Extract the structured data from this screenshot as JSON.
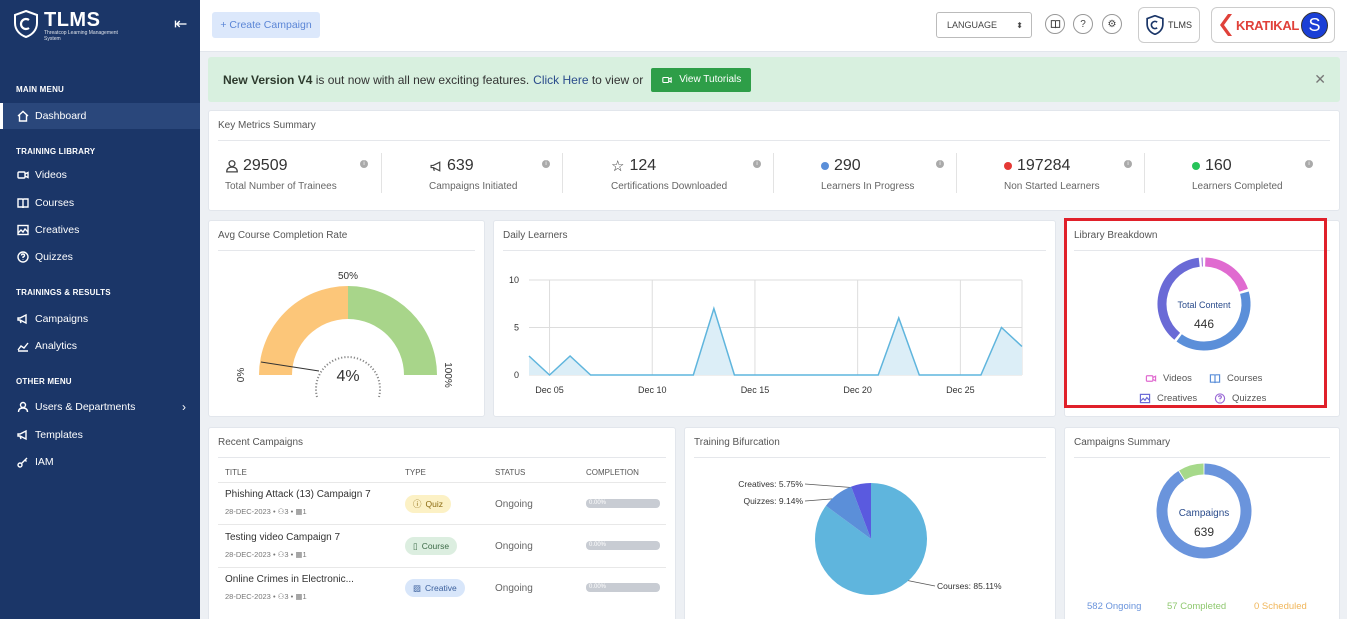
{
  "app": {
    "name": "TLMS",
    "tagline": "Threatcop Learning Management System"
  },
  "sidebar": {
    "sections": [
      "MAIN MENU",
      "TRAINING LIBRARY",
      "TRAININGS & RESULTS",
      "OTHER MENU"
    ],
    "items": [
      {
        "label": "Dashboard",
        "icon": "home-icon",
        "active": true
      },
      {
        "label": "Videos",
        "icon": "video-icon"
      },
      {
        "label": "Courses",
        "icon": "book-icon"
      },
      {
        "label": "Creatives",
        "icon": "image-icon"
      },
      {
        "label": "Quizzes",
        "icon": "question-icon"
      },
      {
        "label": "Campaigns",
        "icon": "megaphone-icon"
      },
      {
        "label": "Analytics",
        "icon": "analytics-icon"
      },
      {
        "label": "Users & Departments",
        "icon": "users-icon"
      },
      {
        "label": "Templates",
        "icon": "megaphone-icon"
      },
      {
        "label": "IAM",
        "icon": "iam-icon"
      }
    ]
  },
  "topbar": {
    "create_label": "+ Create Campaign",
    "language_label": "LANGUAGE",
    "tlms_label": "TLMS",
    "brand_label": "KRATIKAL",
    "avatar_letter": "S"
  },
  "banner": {
    "bold": "New Version V4",
    "text": " is out now with all new exciting features.",
    "link": "Click Here",
    "text2": " to view or",
    "button": "View Tutorials"
  },
  "metrics": {
    "title": "Key Metrics Summary",
    "items": [
      {
        "value": "29509",
        "label": "Total Number of Trainees",
        "icon": "user-icon"
      },
      {
        "value": "639",
        "label": "Campaigns Initiated",
        "icon": "megaphone-icon"
      },
      {
        "value": "124",
        "label": "Certifications Downloaded",
        "icon": "star-icon"
      },
      {
        "value": "290",
        "label": "Learners In Progress",
        "color": "#5b8fd9"
      },
      {
        "value": "197284",
        "label": "Non Started Learners",
        "color": "#e53935"
      },
      {
        "value": "160",
        "label": "Learners Completed",
        "color": "#27c45a"
      }
    ]
  },
  "completion": {
    "title": "Avg Course Completion Rate",
    "value_label": "4%",
    "mid_label": "50%",
    "min_label": "0%",
    "max_label": "100%",
    "value": 4
  },
  "daily": {
    "title": "Daily Learners"
  },
  "library": {
    "title": "Library Breakdown",
    "center_label": "Total Content",
    "center_value": "446",
    "legend": [
      {
        "label": "Videos",
        "icon": "video-icon",
        "color": "#e06bd0"
      },
      {
        "label": "Courses",
        "icon": "book-icon",
        "color": "#5b8fd9"
      },
      {
        "label": "Creatives",
        "icon": "image-icon",
        "color": "#6a6ad6"
      },
      {
        "label": "Quizzes",
        "icon": "question-icon",
        "color": "#9b6bd6"
      }
    ]
  },
  "recent": {
    "title": "Recent Campaigns",
    "headers": [
      "TITLE",
      "TYPE",
      "STATUS",
      "COMPLETION"
    ],
    "rows": [
      {
        "title": "Phishing Attack (13) Campaign 7",
        "date": "28-DEC-2023",
        "users": "3",
        "modules": "1",
        "type": "Quiz",
        "status": "Ongoing",
        "completion": "0.00%"
      },
      {
        "title": "Testing video Campaign 7",
        "date": "28-DEC-2023",
        "users": "3",
        "modules": "1",
        "type": "Course",
        "status": "Ongoing",
        "completion": "0.00%"
      },
      {
        "title": "Online Crimes in Electronic...",
        "date": "28-DEC-2023",
        "users": "3",
        "modules": "1",
        "type": "Creative",
        "status": "Ongoing",
        "completion": "0.00%"
      }
    ]
  },
  "bifurcation": {
    "title": "Training Bifurcation",
    "labels": [
      "Creatives: 5.75%",
      "Quizzes: 9.14%",
      "Courses: 85.11%"
    ]
  },
  "summary": {
    "title": "Campaigns Summary",
    "center_label": "Campaigns",
    "center_value": "639",
    "ongoing": "582 Ongoing",
    "completed": "57 Completed",
    "scheduled": "0 Scheduled"
  },
  "chart_data": [
    {
      "type": "area",
      "title": "Daily Learners",
      "x": [
        "Dec 04",
        "Dec 05",
        "Dec 06",
        "Dec 07",
        "Dec 08",
        "Dec 09",
        "Dec 10",
        "Dec 11",
        "Dec 12",
        "Dec 13",
        "Dec 14",
        "Dec 15",
        "Dec 16",
        "Dec 17",
        "Dec 18",
        "Dec 19",
        "Dec 20",
        "Dec 21",
        "Dec 22",
        "Dec 23",
        "Dec 24",
        "Dec 25",
        "Dec 26",
        "Dec 27",
        "Dec 28"
      ],
      "values": [
        2,
        0,
        2,
        0,
        0,
        0,
        0,
        0,
        0,
        7,
        0,
        0,
        0,
        0,
        0,
        0,
        0,
        0,
        6,
        0,
        0,
        0,
        0,
        5,
        3
      ],
      "ylim": [
        0,
        10
      ],
      "yticks": [
        0,
        5,
        10
      ],
      "xticks": [
        "Dec 05",
        "Dec 10",
        "Dec 15",
        "Dec 20",
        "Dec 25"
      ]
    },
    {
      "type": "pie",
      "title": "Training Bifurcation",
      "categories": [
        "Courses",
        "Quizzes",
        "Creatives"
      ],
      "values": [
        85.11,
        9.14,
        5.75
      ],
      "colors": [
        "#5fb5dd",
        "#5b8fd9",
        "#5a5adf"
      ]
    },
    {
      "type": "pie",
      "title": "Campaigns Summary",
      "categories": [
        "Ongoing",
        "Completed",
        "Scheduled"
      ],
      "values": [
        582,
        57,
        0
      ],
      "colors": [
        "#6a94dc",
        "#a6d98a",
        "#f5c77a"
      ]
    },
    {
      "type": "pie",
      "title": "Library Breakdown",
      "categories": [
        "Videos",
        "Courses",
        "Creatives",
        "Quizzes"
      ],
      "values": [
        90,
        180,
        170,
        6
      ],
      "colors": [
        "#e06bd0",
        "#5b8fd9",
        "#6a6ad6",
        "#9b6bd6"
      ]
    }
  ]
}
